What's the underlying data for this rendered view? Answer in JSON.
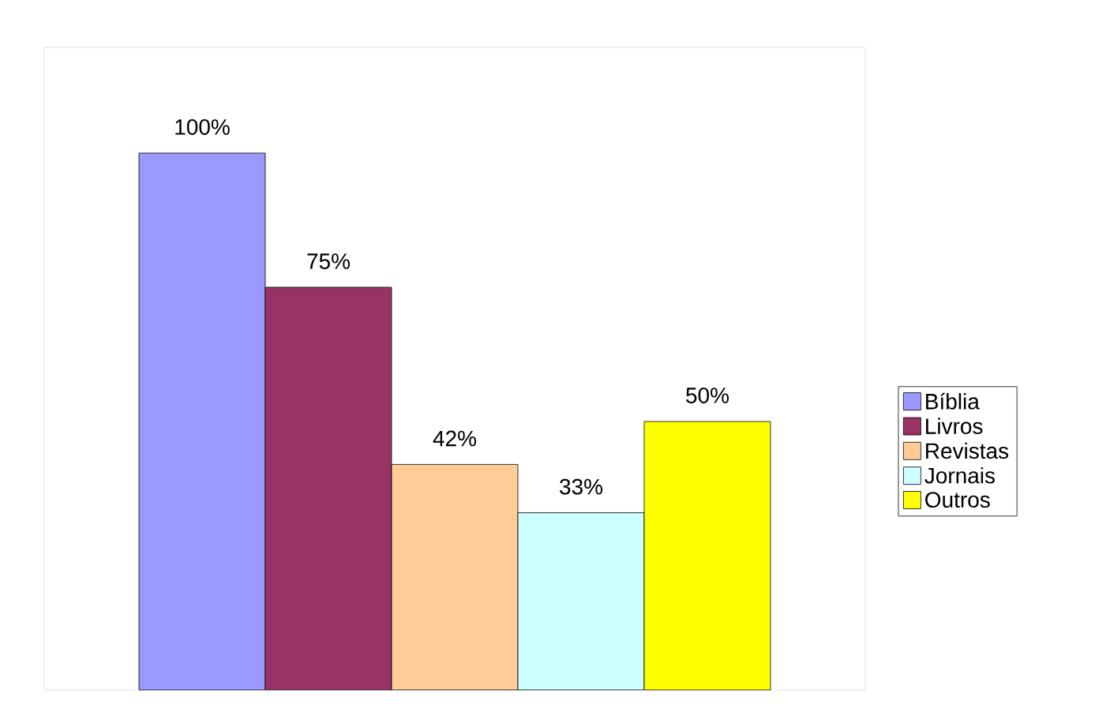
{
  "chart_data": {
    "type": "bar",
    "categories": [
      null
    ],
    "series": [
      {
        "name": "Bíblia",
        "color": "#9999ff",
        "values": [
          100
        ],
        "value_labels": [
          "100%"
        ]
      },
      {
        "name": "Livros",
        "color": "#993366",
        "values": [
          75
        ],
        "value_labels": [
          "75%"
        ]
      },
      {
        "name": "Revistas",
        "color": "#ffcc99",
        "values": [
          42
        ],
        "value_labels": [
          "42%"
        ]
      },
      {
        "name": "Jornais",
        "color": "#ccffff",
        "values": [
          33
        ],
        "value_labels": [
          "33%"
        ]
      },
      {
        "name": "Outros",
        "color": "#ffff00",
        "values": [
          50
        ],
        "value_labels": [
          "50%"
        ]
      }
    ],
    "legend": "right"
  }
}
